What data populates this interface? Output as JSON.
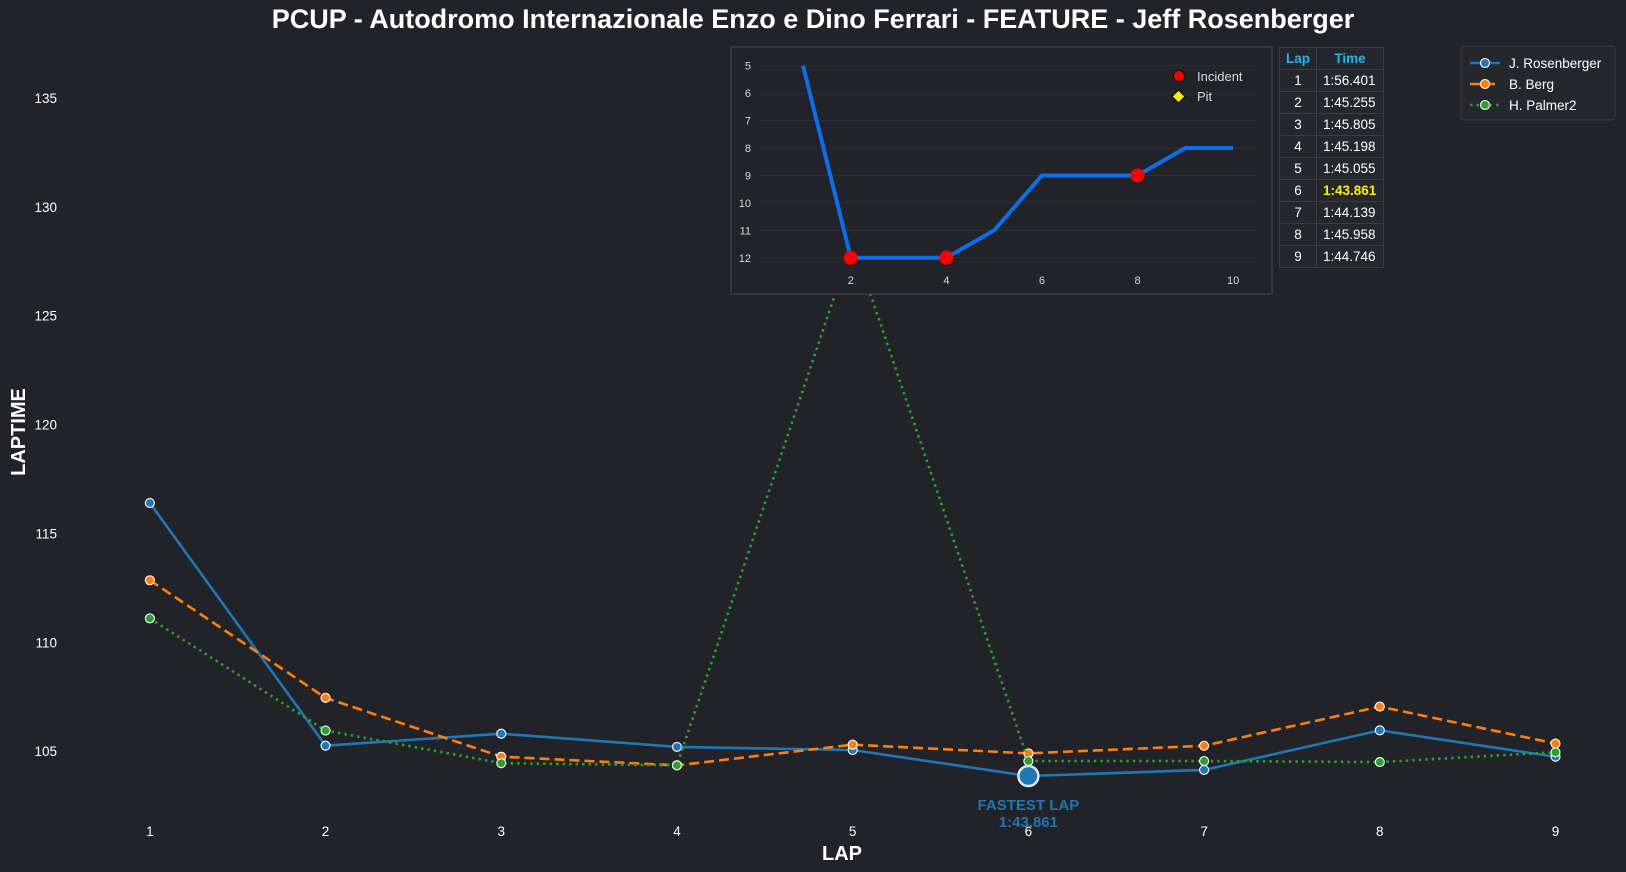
{
  "chart_data": [
    {
      "type": "line",
      "title": "PCUP - Autodromo Internazionale Enzo e Dino Ferrari - FEATURE - Jeff Rosenberger",
      "xlabel": "LAP",
      "ylabel": "LAPTIME",
      "x": [
        1,
        2,
        3,
        4,
        5,
        6,
        7,
        8,
        9
      ],
      "xlim": [
        0.5,
        9.35
      ],
      "ylim": [
        102.3,
        137.2
      ],
      "yticks": [
        105,
        110,
        115,
        120,
        125,
        130,
        135
      ],
      "grid": false,
      "legend_position": "top-right",
      "series": [
        {
          "name": "J. Rosenberger",
          "color": "#1f77b4",
          "style": "solid",
          "values": [
            116.401,
            105.255,
            105.805,
            105.198,
            105.055,
            103.861,
            104.139,
            105.958,
            104.746
          ]
        },
        {
          "name": "B. Berg",
          "color": "#ff7f0e",
          "style": "dashed",
          "values": [
            112.85,
            107.45,
            104.75,
            104.35,
            105.3,
            104.9,
            105.25,
            107.05,
            105.35
          ]
        },
        {
          "name": "H. Palmer2",
          "color": "#2ca02c",
          "style": "dotted",
          "values": [
            111.1,
            105.95,
            104.45,
            104.35,
            128.4,
            104.55,
            104.55,
            104.5,
            104.95
          ]
        }
      ],
      "annotation": {
        "label": "FASTEST LAP",
        "value_label": "1:43.861",
        "lap": 6,
        "value": 103.861
      }
    },
    {
      "type": "line",
      "title": "",
      "xlabel": "",
      "ylabel": "",
      "y_inverted": true,
      "x": [
        1,
        2,
        3,
        4,
        5,
        6,
        7,
        8,
        9,
        10
      ],
      "xticks": [
        2,
        4,
        6,
        8,
        10
      ],
      "xlim": [
        0.1,
        10.5
      ],
      "yticks": [
        5,
        6,
        7,
        8,
        9,
        10,
        11,
        12
      ],
      "ylim": [
        4.9,
        12.3
      ],
      "grid": true,
      "legend_position": "top-right",
      "series": [
        {
          "name": "",
          "color": "#0b6fe8",
          "values": [
            5,
            12,
            12,
            12,
            11,
            9,
            9,
            9,
            8,
            8
          ]
        }
      ],
      "incidents": {
        "label": "Incident",
        "color": "#ff0000",
        "laps": [
          2,
          4,
          8
        ]
      },
      "pit": {
        "label": "Pit",
        "color": "#ffee00",
        "laps": []
      }
    }
  ],
  "table": {
    "headers": [
      "Lap",
      "Time"
    ],
    "rows": [
      [
        "1",
        "1:56.401"
      ],
      [
        "2",
        "1:45.255"
      ],
      [
        "3",
        "1:45.805"
      ],
      [
        "4",
        "1:45.198"
      ],
      [
        "5",
        "1:45.055"
      ],
      [
        "6",
        "1:43.861"
      ],
      [
        "7",
        "1:44.139"
      ],
      [
        "8",
        "1:45.958"
      ],
      [
        "9",
        "1:44.746"
      ]
    ],
    "best_lap": "6",
    "header_color": "#1fb8e8",
    "best_color": "#ffee00"
  },
  "colors": {
    "background": "#212328",
    "panel": "#24272c",
    "border": "#3a3d44"
  }
}
